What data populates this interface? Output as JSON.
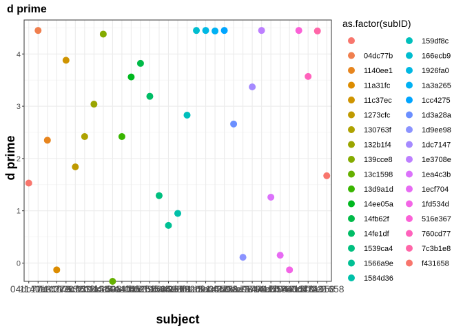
{
  "chart_data": {
    "type": "scatter",
    "title": "d prime",
    "xlabel": "subject",
    "ylabel": "d prime",
    "ylim": [
      -0.35,
      4.65
    ],
    "y_ticks": [
      0,
      1,
      2,
      3,
      4
    ],
    "x_tick_label_prefixes": [
      "04dc77b",
      "1140ee1",
      "11a31fc",
      "11c37ec",
      "1273cfc",
      "130763f",
      "132b1f4",
      "139cce8",
      "13c1598",
      "13d9a1d",
      "14ee05a",
      "14fb62f",
      "14fe1df",
      "1539ca4",
      "1566a9e",
      "1584d36",
      "159df8c",
      "166ecb9",
      "1926fa0",
      "1a3a265",
      "1cc4275",
      "1d3a28a",
      "1d9ee98",
      "1dc7147",
      "1e3708e",
      "1ea4c3b",
      "1ecf704",
      "1fd534d",
      "516e367",
      "760cd77",
      "7c3b1e8",
      "f431658"
    ],
    "grid": true,
    "legend_title": "as.factor(subID)",
    "legend_position": "right",
    "legend_first_label": "",
    "points": [
      {
        "subject": "",
        "value": 1.53,
        "color": "#F8766D"
      },
      {
        "subject": "04dc77b",
        "value": 4.45,
        "color": "#F07F4E"
      },
      {
        "subject": "1140ee1",
        "value": 2.35,
        "color": "#E7851E"
      },
      {
        "subject": "11a31fc",
        "value": -0.13,
        "color": "#DC8C00"
      },
      {
        "subject": "11c37ec",
        "value": 3.88,
        "color": "#CF9400"
      },
      {
        "subject": "1273cfc",
        "value": 1.84,
        "color": "#BF9A00"
      },
      {
        "subject": "130763f",
        "value": 2.42,
        "color": "#AEA200"
      },
      {
        "subject": "132b1f4",
        "value": 3.04,
        "color": "#9AA500"
      },
      {
        "subject": "139cce8",
        "value": 4.38,
        "color": "#84AB00"
      },
      {
        "subject": "13c1598",
        "value": -0.35,
        "color": "#65B000"
      },
      {
        "subject": "13d9a1d",
        "value": 2.42,
        "color": "#39B500"
      },
      {
        "subject": "14ee05a",
        "value": 3.56,
        "color": "#00B81F"
      },
      {
        "subject": "14fb62f",
        "value": 3.82,
        "color": "#00BA48"
      },
      {
        "subject": "14fe1df",
        "value": 3.19,
        "color": "#00BD66"
      },
      {
        "subject": "1539ca4",
        "value": 1.29,
        "color": "#00BF7F"
      },
      {
        "subject": "1566a9e",
        "value": 0.72,
        "color": "#00C094"
      },
      {
        "subject": "1584d36",
        "value": 0.95,
        "color": "#00C0A9"
      },
      {
        "subject": "159df8c",
        "value": 2.83,
        "color": "#00BFBC"
      },
      {
        "subject": "166ecb9",
        "value": 4.45,
        "color": "#00BDCF"
      },
      {
        "subject": "1926fa0",
        "value": 4.45,
        "color": "#00B8E3"
      },
      {
        "subject": "1a3a265",
        "value": 4.44,
        "color": "#00B1F3"
      },
      {
        "subject": "1cc4275",
        "value": 4.45,
        "color": "#00A5FF"
      },
      {
        "subject": "1d3a28a",
        "value": 2.66,
        "color": "#6B8FFF"
      },
      {
        "subject": "1d9ee98",
        "value": 0.11,
        "color": "#8B93FF"
      },
      {
        "subject": "1dc7147",
        "value": 3.37,
        "color": "#A58AFF"
      },
      {
        "subject": "1e3708e",
        "value": 4.45,
        "color": "#BD7FFF"
      },
      {
        "subject": "1ea4c3b",
        "value": 1.26,
        "color": "#DB72FB"
      },
      {
        "subject": "1ecf704",
        "value": 0.15,
        "color": "#E76BF3"
      },
      {
        "subject": "1fd534d",
        "value": -0.13,
        "color": "#F365E6"
      },
      {
        "subject": "516e367",
        "value": 4.45,
        "color": "#FB61D7"
      },
      {
        "subject": "760cd77",
        "value": 3.57,
        "color": "#FF62BC"
      },
      {
        "subject": "7c3b1e8",
        "value": 4.44,
        "color": "#FF66A8"
      },
      {
        "subject": "f431658",
        "value": 1.67,
        "color": "#F8766D"
      }
    ]
  }
}
